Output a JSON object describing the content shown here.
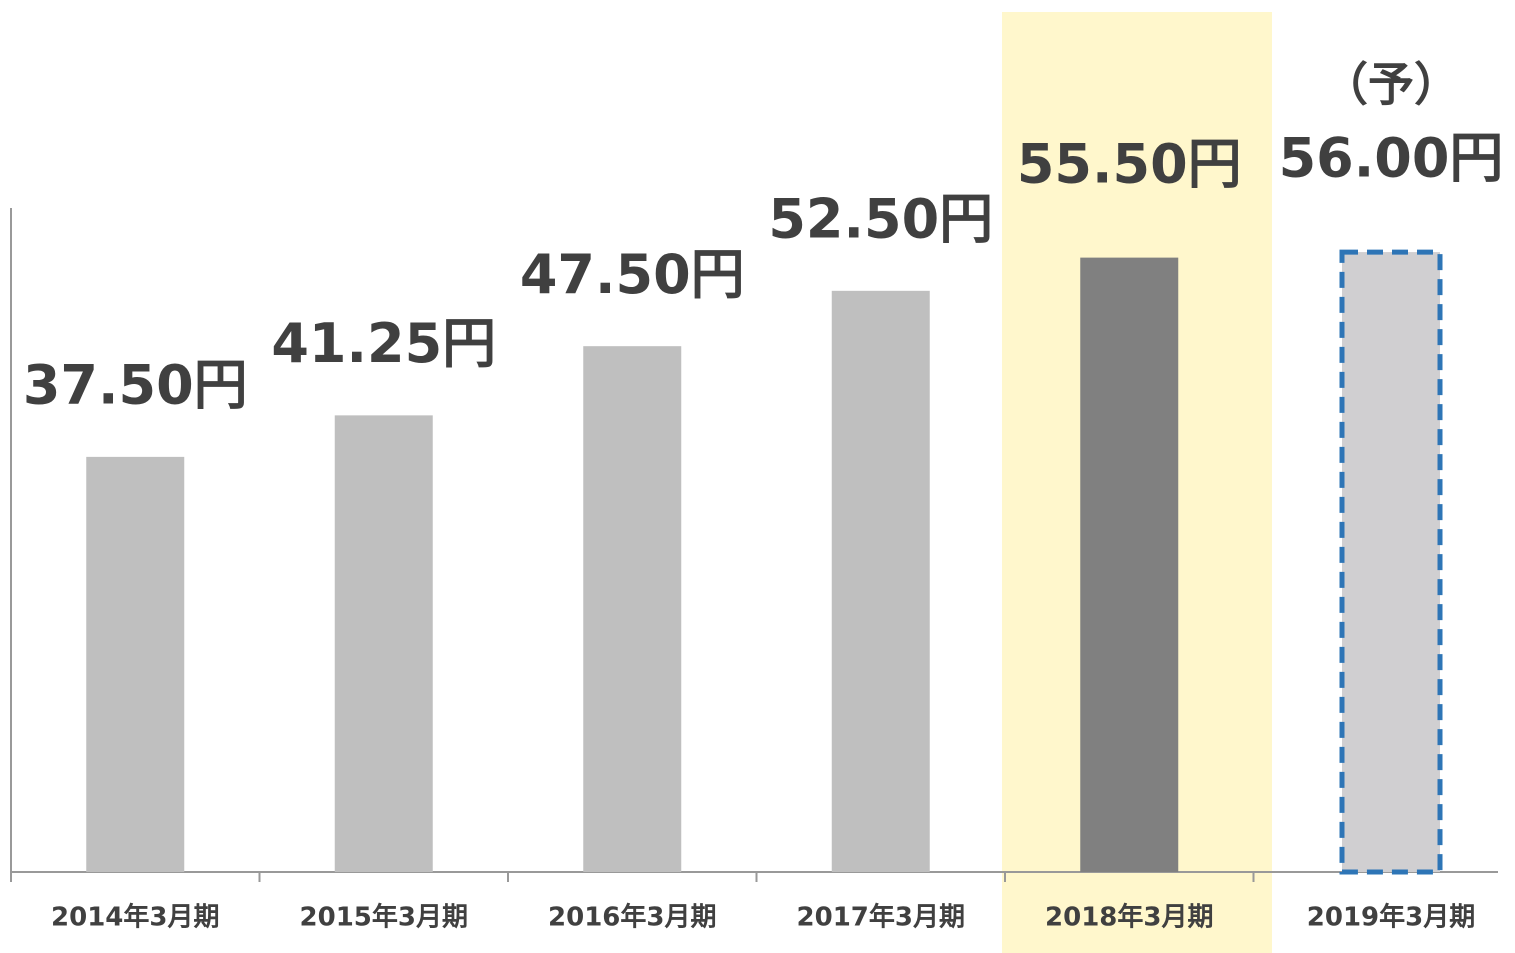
{
  "chart_data": {
    "type": "bar",
    "categories": [
      "2014年3月期",
      "2015年3月期",
      "2016年3月期",
      "2017年3月期",
      "2018年3月期",
      "2019年3月期"
    ],
    "values": [
      37.5,
      41.25,
      47.5,
      52.5,
      55.5,
      56
    ],
    "value_labels": [
      "37.50円",
      "41.25円",
      "47.50円",
      "52.50円",
      "55.50円",
      "56.00円"
    ],
    "colors": [
      "#bfbfbf",
      "#bfbfbf",
      "#bfbfbf",
      "#bfbfbf",
      "#808080",
      "#d0cfd1"
    ],
    "outline_colors": [
      null,
      null,
      null,
      null,
      null,
      "#2e75b6"
    ],
    "highlight_color": "#fff7cc",
    "annotations": [
      {
        "text": "（予）"
      }
    ]
  }
}
